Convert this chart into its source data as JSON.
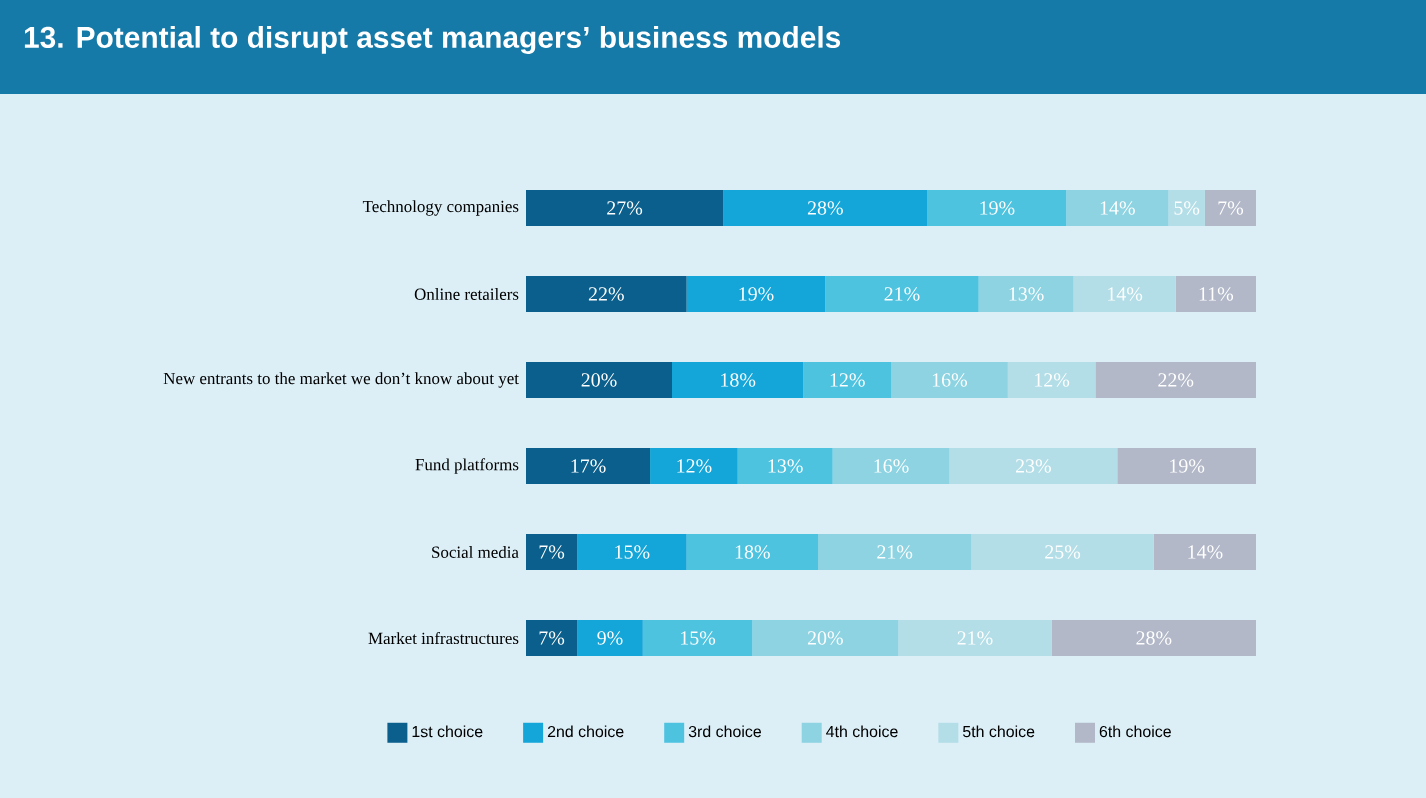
{
  "chart_data": {
    "type": "bar",
    "orientation": "horizontal",
    "stacked": true,
    "title": "13. Potential to disrupt asset managers’ business models",
    "categories": [
      "Technology companies",
      "Online retailers",
      "New entrants to the market we don’t know about yet",
      "Fund platforms",
      "Social media",
      "Market infrastructures"
    ],
    "series": [
      {
        "name": "1st choice",
        "color": "#0b5f8c",
        "values": [
          27,
          22,
          20,
          17,
          7,
          7
        ],
        "value_labels": [
          "27%",
          "22%",
          "20%",
          "17%",
          "7%",
          "7%"
        ]
      },
      {
        "name": "2nd choice",
        "color": "#14a6d8",
        "values": [
          28,
          19,
          18,
          12,
          15,
          9
        ],
        "value_labels": [
          "28%",
          "19%",
          "18%",
          "12%",
          "15%",
          "9%"
        ]
      },
      {
        "name": "3rd choice",
        "color": "#4ec3e0",
        "values": [
          19,
          21,
          12,
          13,
          18,
          15
        ],
        "value_labels": [
          "19%",
          "21%",
          "12%",
          "13%",
          "18%",
          "15%"
        ]
      },
      {
        "name": "4th choice",
        "color": "#8dd3e2",
        "values": [
          14,
          13,
          16,
          16,
          21,
          20
        ],
        "value_labels": [
          "14%",
          "13%",
          "16%",
          "16%",
          "21%",
          "20%"
        ]
      },
      {
        "name": "5th choice",
        "color": "#b3dee7",
        "values": [
          5,
          14,
          12,
          23,
          25,
          21
        ],
        "value_labels": [
          "5%",
          "14%",
          "12%",
          "23%",
          "25%",
          "21%"
        ]
      },
      {
        "name": "6th choice",
        "color": "#b2b8c8",
        "values": [
          7,
          11,
          22,
          19,
          14,
          28
        ],
        "value_labels": [
          "7%",
          "11%",
          "22%",
          "19%",
          "14%",
          "28%"
        ]
      }
    ],
    "xlim": [
      0,
      100
    ],
    "legend": "bottom",
    "tick_labels": "y"
  }
}
